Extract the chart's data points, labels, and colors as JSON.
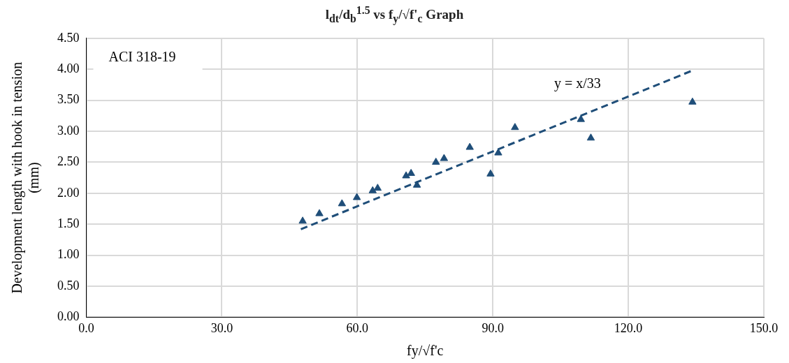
{
  "chart_data": {
    "type": "scatter",
    "title": "l$_{dt}$/d$_{b}$$^{1.5}$ vs f$_{y}$/√f'$_{c}$ Graph",
    "xlabel": "fy/√f'c",
    "ylabel": "Development length with hook in tension (mm)",
    "annotations": [
      "ACI 318-19",
      "y = x/33"
    ],
    "series": [
      {
        "color": "#1f4e79",
        "marker": "triangle",
        "x": [
          47.9,
          51.6,
          56.6,
          59.9,
          63.4,
          64.5,
          70.8,
          71.9,
          73.2,
          77.4,
          79.2,
          84.9,
          89.5,
          91.2,
          94.9,
          109.5,
          111.7,
          134.2
        ],
        "values": [
          1.55,
          1.67,
          1.83,
          1.93,
          2.04,
          2.08,
          2.28,
          2.32,
          2.13,
          2.5,
          2.56,
          2.74,
          2.31,
          2.65,
          3.06,
          3.19,
          2.89,
          3.47
        ]
      },
      {
        "type": "line",
        "color": "#1f4e79",
        "line_style": "dashed",
        "marker": "none",
        "x": [
          47.5,
          134.2
        ],
        "values": [
          1.42,
          3.98
        ]
      }
    ],
    "xlim": [
      0,
      150
    ],
    "xticks": [
      {
        "value": 0,
        "label": "0.0"
      },
      {
        "value": 30,
        "label": "30.0"
      },
      {
        "value": 60,
        "label": "60.0"
      },
      {
        "value": 90,
        "label": "90.0"
      },
      {
        "value": 120,
        "label": "120.0"
      },
      {
        "value": 150,
        "label": "150.0"
      }
    ],
    "ylim": [
      0,
      4.5
    ],
    "yticks": [
      {
        "value": 0,
        "label": "0.00"
      },
      {
        "value": 0.5,
        "label": "0.50"
      },
      {
        "value": 1,
        "label": "1.00"
      },
      {
        "value": 1.5,
        "label": "1.50"
      },
      {
        "value": 2,
        "label": "2.00"
      },
      {
        "value": 2.5,
        "label": "2.50"
      },
      {
        "value": 3,
        "label": "3.00"
      },
      {
        "value": 3.5,
        "label": "3.50"
      },
      {
        "value": 4,
        "label": "4.00"
      },
      {
        "value": 4.5,
        "label": "4.50"
      }
    ],
    "grid": true,
    "legend": false
  }
}
